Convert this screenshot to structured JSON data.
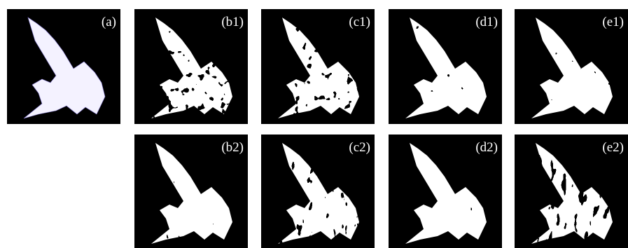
{
  "panels": [
    {
      "label": "(a)"
    },
    {
      "label": "(b1)"
    },
    {
      "label": "(c1)"
    },
    {
      "label": "(d1)"
    },
    {
      "label": "(e1)"
    },
    {
      "label": "(b2)"
    },
    {
      "label": "(c2)"
    },
    {
      "label": "(d2)"
    },
    {
      "label": "(e2)"
    }
  ]
}
